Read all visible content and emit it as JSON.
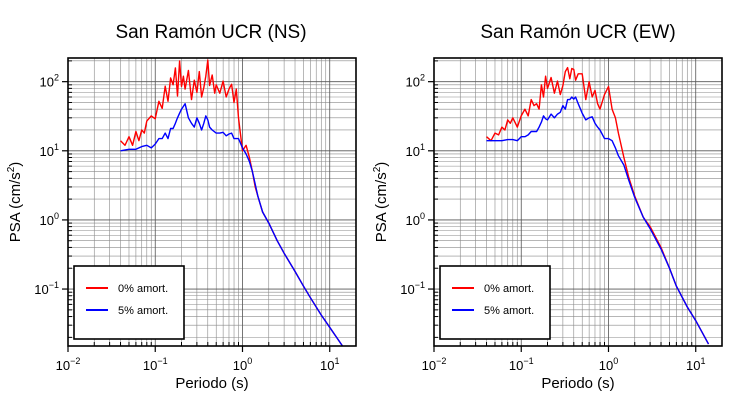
{
  "chart_data": [
    {
      "type": "line",
      "title": "San Ramón UCR (NS)",
      "xlabel": "Periodo (s)",
      "ylabel": "PSA (cm/s²)",
      "xscale": "log",
      "yscale": "log",
      "xlim": [
        0.01,
        20
      ],
      "ylim": [
        0.015,
        220
      ],
      "grid": true,
      "legend_position": "bottom-left",
      "xticks": [
        {
          "value": 0.01,
          "base": "10",
          "exp": "−2"
        },
        {
          "value": 0.1,
          "base": "10",
          "exp": "−1"
        },
        {
          "value": 1,
          "base": "10",
          "exp": "0"
        },
        {
          "value": 10,
          "base": "10",
          "exp": "1"
        }
      ],
      "yticks": [
        {
          "value": 0.1,
          "base": "10",
          "exp": "−1"
        },
        {
          "value": 1,
          "base": "10",
          "exp": "0"
        },
        {
          "value": 10,
          "base": "10",
          "exp": "1"
        },
        {
          "value": 100,
          "base": "10",
          "exp": "2"
        }
      ],
      "series": [
        {
          "name": "0% amort.",
          "color": "#ff0000",
          "x": [
            0.04,
            0.045,
            0.05,
            0.055,
            0.06,
            0.065,
            0.07,
            0.075,
            0.08,
            0.09,
            0.1,
            0.11,
            0.12,
            0.13,
            0.14,
            0.15,
            0.16,
            0.17,
            0.18,
            0.19,
            0.2,
            0.21,
            0.22,
            0.24,
            0.26,
            0.28,
            0.3,
            0.32,
            0.34,
            0.36,
            0.38,
            0.4,
            0.42,
            0.45,
            0.48,
            0.5,
            0.55,
            0.6,
            0.65,
            0.7,
            0.75,
            0.8,
            0.85,
            0.9,
            1.0,
            1.1,
            1.2,
            1.3,
            1.4,
            1.5,
            1.7,
            2.0,
            2.5,
            3.0,
            4.0,
            5.0,
            6.0,
            8.0,
            10.0,
            12.0,
            14.0
          ],
          "y": [
            14,
            12,
            16,
            12,
            19,
            14,
            20,
            18,
            27,
            32,
            29,
            52,
            41,
            86,
            52,
            113,
            90,
            158,
            62,
            200,
            85,
            120,
            78,
            145,
            55,
            105,
            70,
            140,
            60,
            82,
            120,
            205,
            88,
            125,
            68,
            90,
            68,
            102,
            60,
            78,
            92,
            50,
            78,
            30,
            10,
            12,
            8,
            5,
            3,
            2.2,
            1.3,
            0.9,
            0.5,
            0.33,
            0.18,
            0.11,
            0.075,
            0.042,
            0.028,
            0.02,
            0.015
          ]
        },
        {
          "name": "5% amort.",
          "color": "#0000ff",
          "x": [
            0.04,
            0.05,
            0.06,
            0.07,
            0.08,
            0.09,
            0.1,
            0.11,
            0.12,
            0.13,
            0.14,
            0.15,
            0.16,
            0.17,
            0.18,
            0.19,
            0.2,
            0.22,
            0.24,
            0.26,
            0.28,
            0.3,
            0.32,
            0.34,
            0.36,
            0.38,
            0.4,
            0.42,
            0.45,
            0.5,
            0.55,
            0.6,
            0.65,
            0.7,
            0.75,
            0.8,
            0.85,
            0.9,
            1.0,
            1.1,
            1.2,
            1.3,
            1.4,
            1.5,
            1.7,
            2.0,
            2.5,
            3.0,
            4.0,
            5.0,
            6.0,
            8.0,
            10.0,
            12.0,
            14.0
          ],
          "y": [
            10,
            10.5,
            10.5,
            11.5,
            12,
            11,
            12.5,
            15,
            15,
            18,
            15,
            21,
            21,
            25,
            30,
            35,
            40,
            48,
            30,
            25,
            22,
            30,
            25,
            20,
            25,
            32,
            28,
            22,
            20,
            18,
            18,
            18.5,
            16.5,
            17.5,
            18,
            15,
            15,
            15,
            11,
            9,
            7,
            5,
            3.3,
            2.2,
            1.3,
            0.9,
            0.5,
            0.33,
            0.18,
            0.11,
            0.075,
            0.042,
            0.028,
            0.02,
            0.015
          ]
        }
      ]
    },
    {
      "type": "line",
      "title": "San Ramón UCR (EW)",
      "xlabel": "Periodo (s)",
      "ylabel": "PSA (cm/s²)",
      "xscale": "log",
      "yscale": "log",
      "xlim": [
        0.01,
        20
      ],
      "ylim": [
        0.015,
        220
      ],
      "grid": true,
      "legend_position": "bottom-left",
      "xticks": [
        {
          "value": 0.01,
          "base": "10",
          "exp": "−2"
        },
        {
          "value": 0.1,
          "base": "10",
          "exp": "−1"
        },
        {
          "value": 1,
          "base": "10",
          "exp": "0"
        },
        {
          "value": 10,
          "base": "10",
          "exp": "1"
        }
      ],
      "yticks": [
        {
          "value": 0.1,
          "base": "10",
          "exp": "−1"
        },
        {
          "value": 1,
          "base": "10",
          "exp": "0"
        },
        {
          "value": 10,
          "base": "10",
          "exp": "1"
        },
        {
          "value": 100,
          "base": "10",
          "exp": "2"
        }
      ],
      "series": [
        {
          "name": "0% amort.",
          "color": "#ff0000",
          "x": [
            0.04,
            0.045,
            0.05,
            0.055,
            0.06,
            0.065,
            0.07,
            0.075,
            0.08,
            0.09,
            0.1,
            0.11,
            0.12,
            0.13,
            0.14,
            0.15,
            0.16,
            0.17,
            0.18,
            0.19,
            0.2,
            0.22,
            0.24,
            0.26,
            0.28,
            0.3,
            0.32,
            0.34,
            0.36,
            0.38,
            0.4,
            0.42,
            0.45,
            0.5,
            0.55,
            0.6,
            0.65,
            0.7,
            0.75,
            0.8,
            0.9,
            1.0,
            1.1,
            1.2,
            1.3,
            1.5,
            1.7,
            2.0,
            2.5,
            3.0,
            4.0,
            5.0,
            6.0,
            8.0,
            10.0,
            12.0,
            14.0
          ],
          "y": [
            16,
            14,
            18,
            17,
            22,
            20,
            28,
            25,
            30,
            22,
            32,
            40,
            32,
            55,
            45,
            48,
            40,
            90,
            60,
            120,
            80,
            115,
            68,
            102,
            65,
            88,
            140,
            160,
            110,
            155,
            150,
            105,
            130,
            130,
            55,
            100,
            60,
            75,
            48,
            40,
            65,
            85,
            40,
            30,
            18,
            8,
            4.2,
            2.2,
            1.1,
            0.8,
            0.4,
            0.2,
            0.11,
            0.055,
            0.035,
            0.023,
            0.016
          ]
        },
        {
          "name": "5% amort.",
          "color": "#0000ff",
          "x": [
            0.04,
            0.05,
            0.06,
            0.07,
            0.08,
            0.09,
            0.1,
            0.11,
            0.12,
            0.13,
            0.14,
            0.15,
            0.16,
            0.17,
            0.18,
            0.19,
            0.2,
            0.22,
            0.24,
            0.26,
            0.28,
            0.3,
            0.32,
            0.34,
            0.36,
            0.38,
            0.4,
            0.42,
            0.45,
            0.5,
            0.55,
            0.6,
            0.65,
            0.7,
            0.75,
            0.8,
            0.9,
            1.0,
            1.1,
            1.2,
            1.3,
            1.5,
            1.7,
            2.0,
            2.5,
            3.0,
            4.0,
            5.0,
            6.0,
            8.0,
            10.0,
            12.0,
            14.0
          ],
          "y": [
            14,
            14,
            14,
            14.5,
            14.5,
            14,
            16,
            16,
            17,
            19,
            19,
            19,
            22,
            26,
            32,
            29,
            28,
            34,
            30,
            34,
            36,
            45,
            40,
            55,
            55,
            60,
            56,
            60,
            48,
            35,
            28,
            30,
            31,
            25,
            22,
            20,
            15,
            15,
            14,
            11,
            8.5,
            6.2,
            3.8,
            2.1,
            1.1,
            0.75,
            0.38,
            0.2,
            0.11,
            0.055,
            0.035,
            0.023,
            0.016
          ]
        }
      ]
    }
  ]
}
